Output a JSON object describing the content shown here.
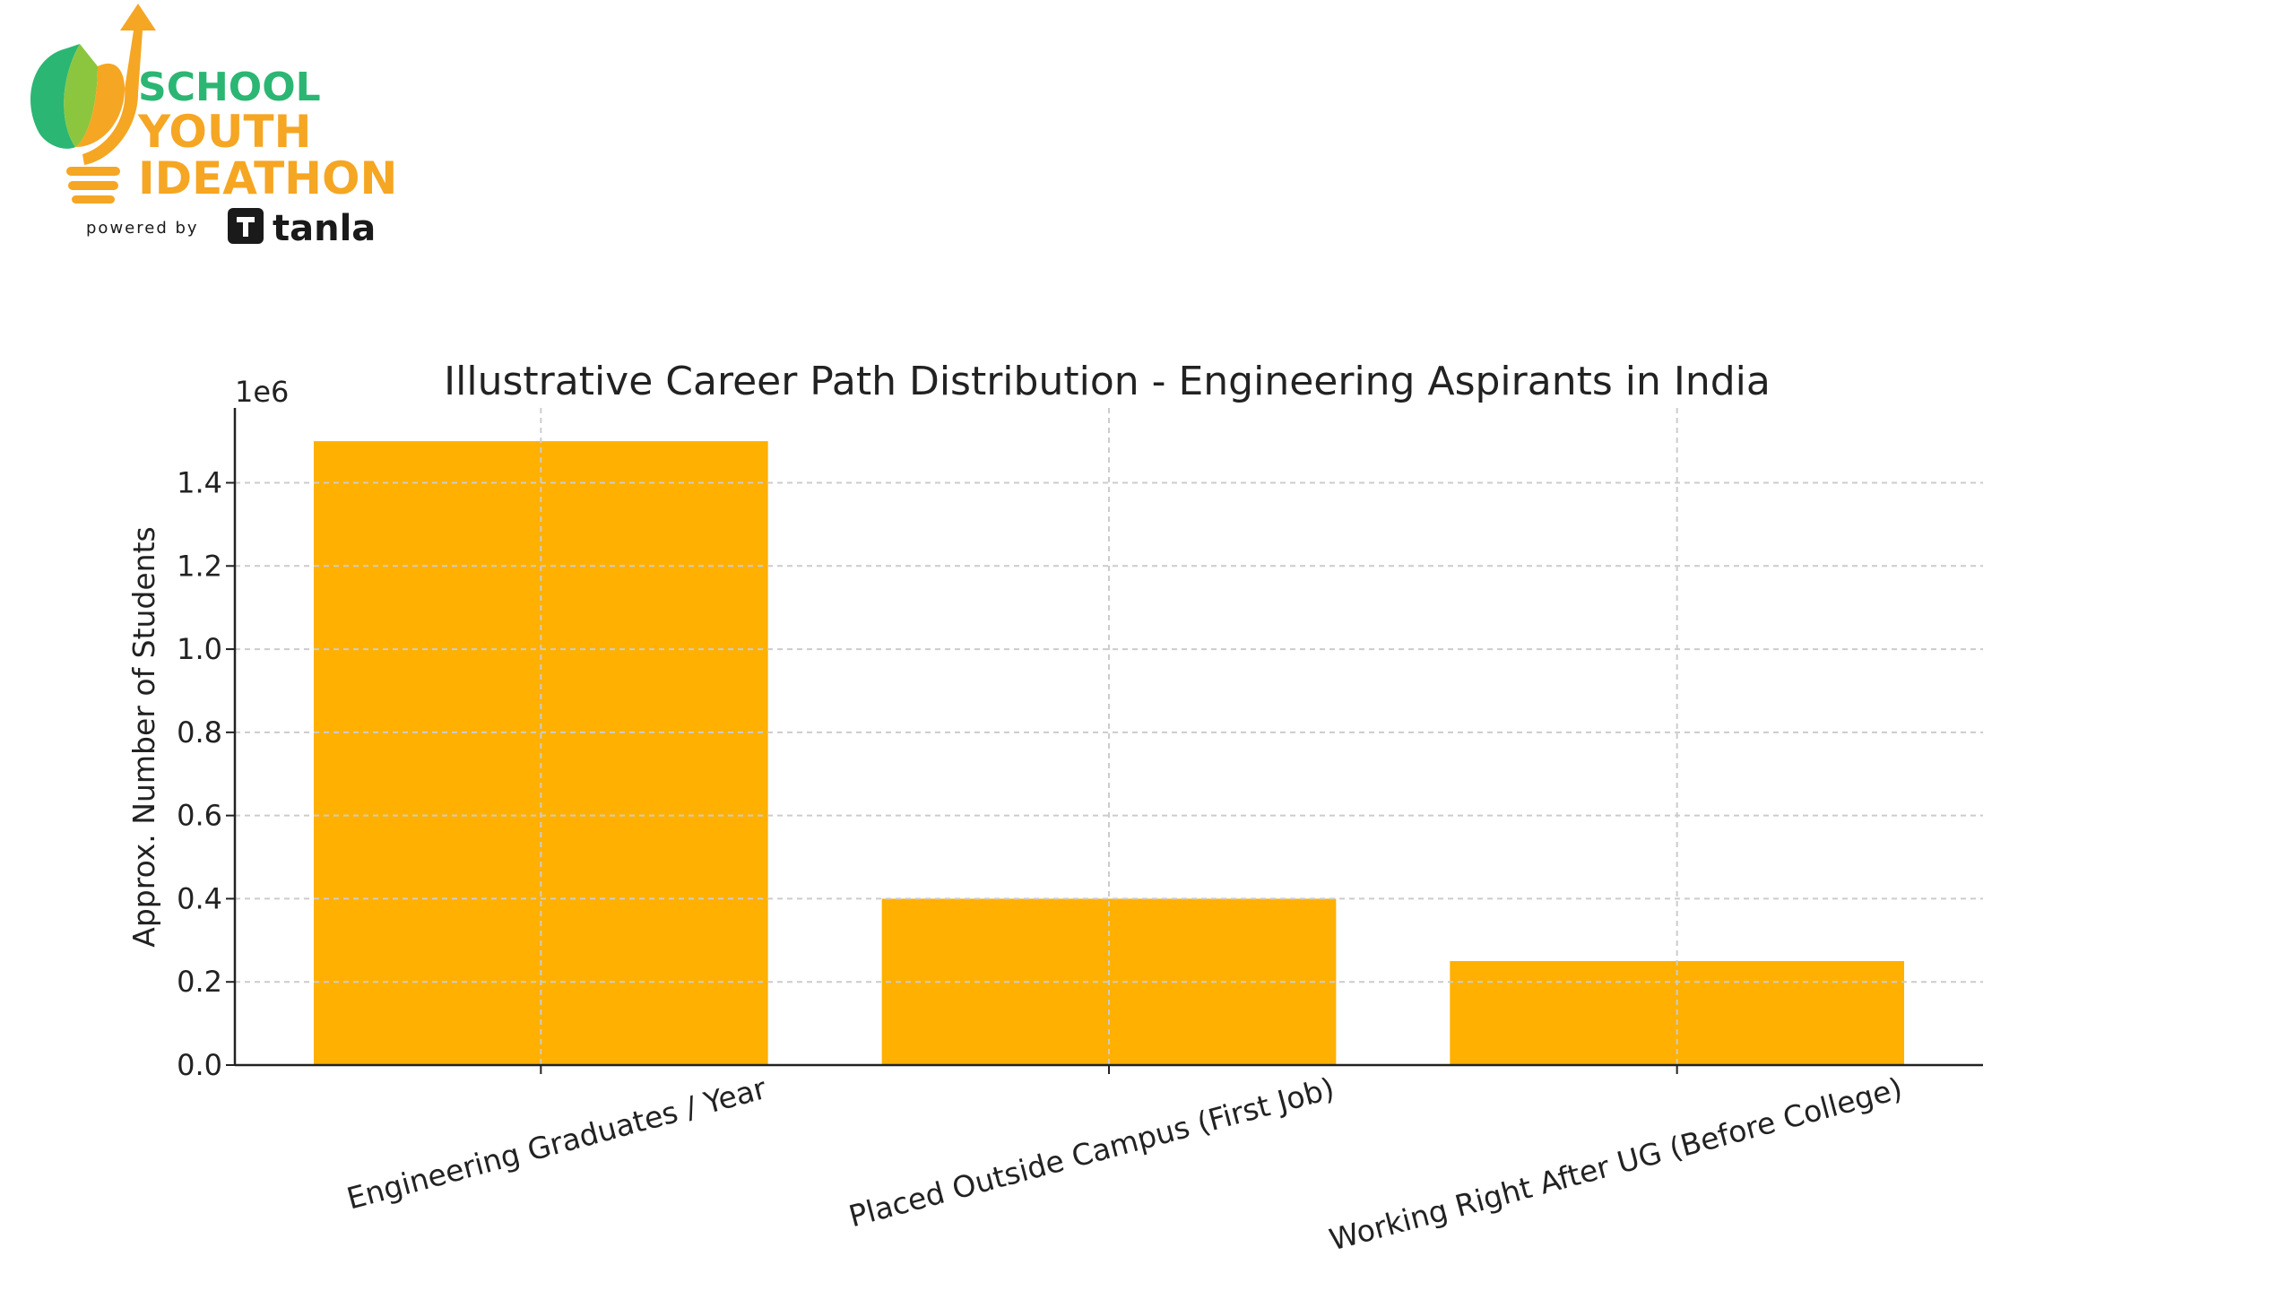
{
  "brand": {
    "line1": "SCHOOL",
    "line2": "YOUTH",
    "line3": "IDEATHON",
    "powered_by": "powered by",
    "partner": "tanla",
    "colors": {
      "green": "#2bb673",
      "orange": "#f5a623",
      "dark": "#1a1a1a"
    },
    "icon": "lightbulb-arrow-icon",
    "partner_icon": "tanla-mark-icon"
  },
  "chart_data": {
    "type": "bar",
    "title": "Illustrative Career Path Distribution - Engineering Aspirants in India",
    "ylabel": "Approx. Number of Students",
    "xlabel": "",
    "offset_label": "1e6",
    "categories": [
      "Engineering Graduates / Year",
      "Placed Outside Campus (First Job)",
      "Working Right After UG (Before College)"
    ],
    "values": [
      1500000,
      400000,
      250000
    ],
    "yticks": [
      "0.0",
      "0.2",
      "0.4",
      "0.6",
      "0.8",
      "1.0",
      "1.2",
      "1.4"
    ],
    "ylim": [
      0,
      1580000
    ],
    "bar_color": "#ffb000",
    "grid": true,
    "grid_style": "dashed"
  }
}
